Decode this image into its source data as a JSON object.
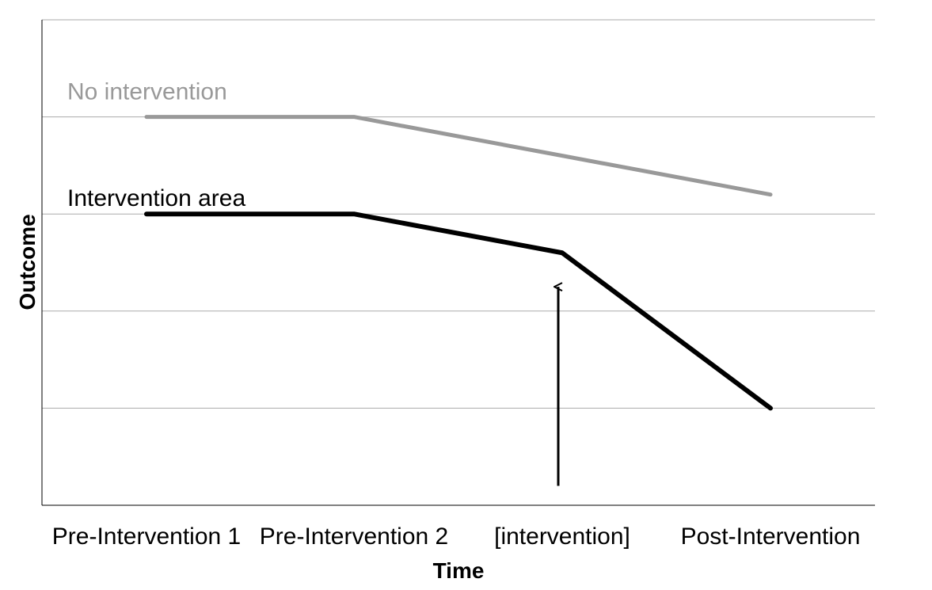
{
  "chart_data": {
    "type": "line",
    "title": "",
    "xlabel": "Time",
    "ylabel": "Outcome",
    "categories": [
      "Pre-Intervention 1",
      "Pre-Intervention 2",
      "[intervention]",
      "Post-Intervention"
    ],
    "ylim": [
      0,
      5
    ],
    "grid": true,
    "series": [
      {
        "name": "No intervention",
        "color": "#999999",
        "x": [
          0,
          1,
          2,
          3
        ],
        "values": [
          4,
          4,
          3.6,
          3.2
        ]
      },
      {
        "name": "Intervention area",
        "color": "#000000",
        "x": [
          0,
          1,
          2,
          3
        ],
        "values": [
          3,
          3,
          2.6,
          1
        ]
      }
    ],
    "annotations": [
      {
        "type": "arrow",
        "x": 2,
        "y_from": 0.2,
        "y_to": 2.25
      }
    ]
  }
}
